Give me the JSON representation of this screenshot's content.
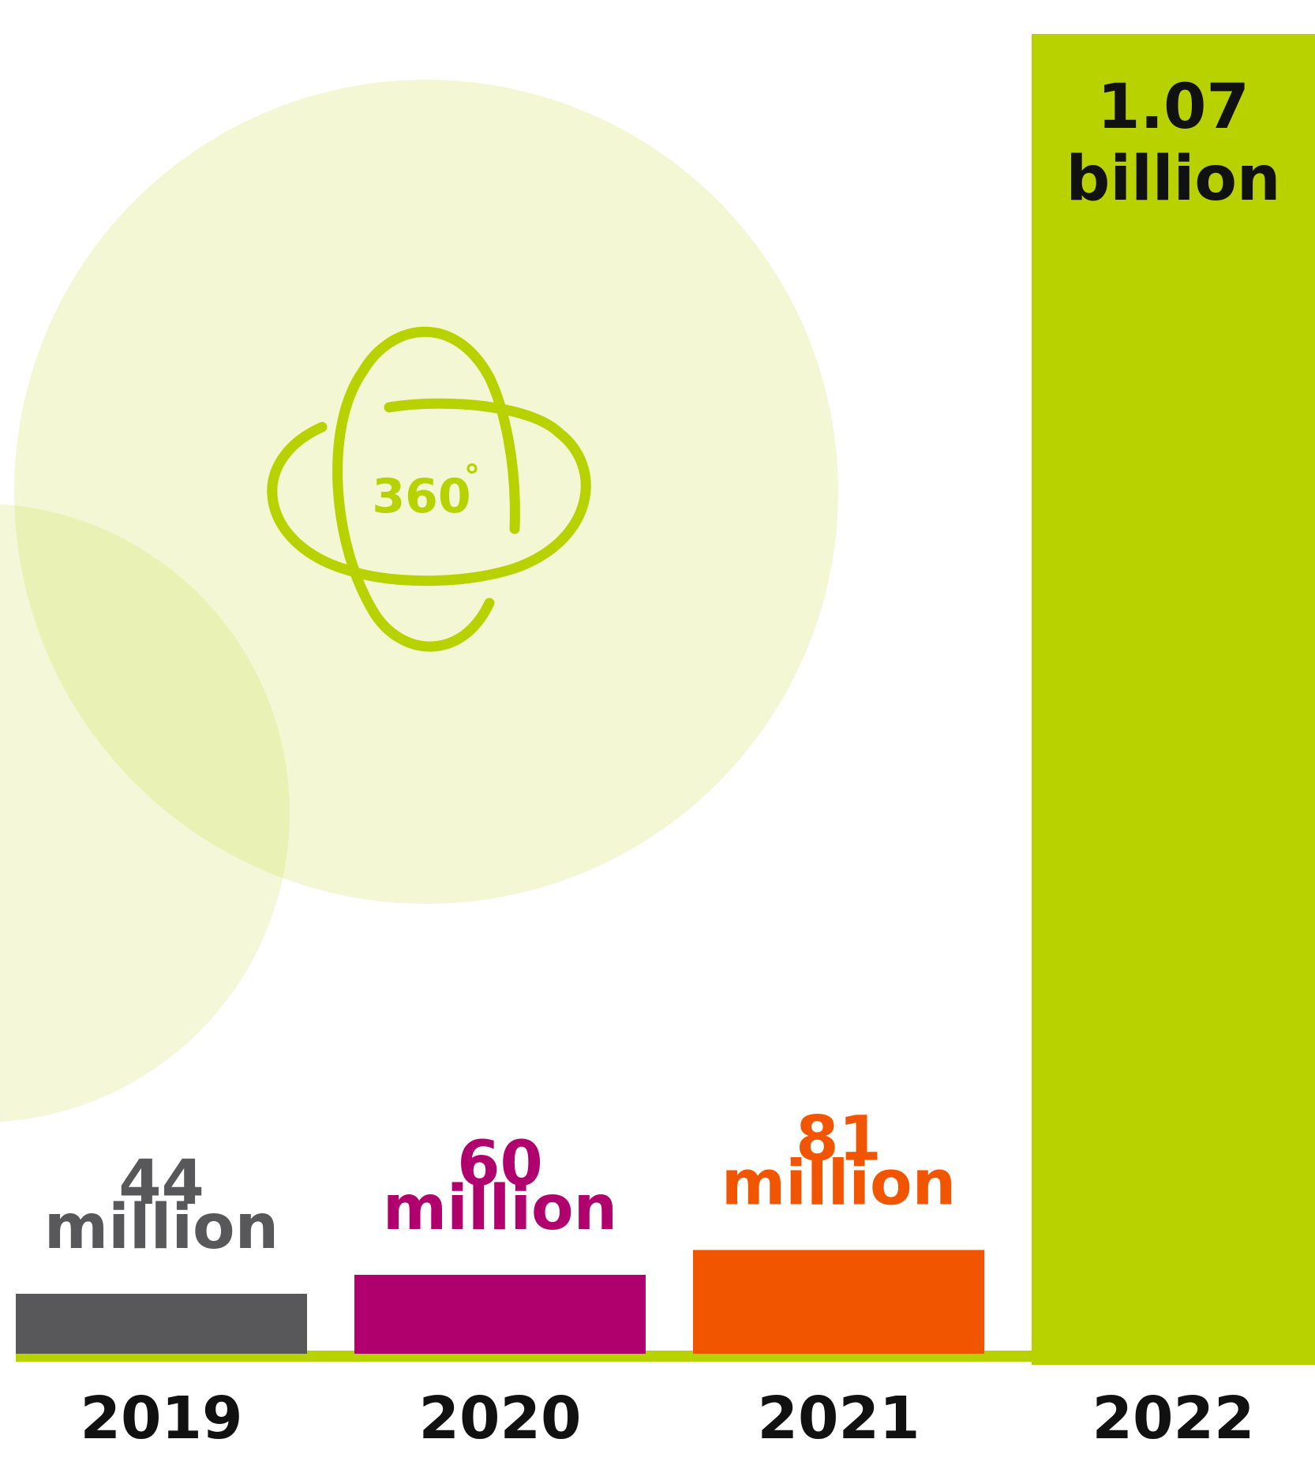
{
  "chart_data": {
    "type": "bar",
    "title": "",
    "xlabel": "",
    "ylabel": "",
    "categories": [
      "2019",
      "2020",
      "2021",
      "2022"
    ],
    "values": [
      44000000,
      60000000,
      81000000,
      1070000000
    ],
    "value_labels": [
      {
        "number": "44",
        "unit": "million"
      },
      {
        "number": "60",
        "unit": "million"
      },
      {
        "number": "81",
        "unit": "million"
      },
      {
        "number": "1.07",
        "unit": "billion"
      }
    ],
    "bar_colors": [
      "#58585a",
      "#b0006e",
      "#f25500",
      "#b8d200"
    ],
    "label_colors": [
      "#58585a",
      "#b0006e",
      "#f25500",
      "#111111"
    ],
    "baseline_color": "#b8d200",
    "legend": "none",
    "grid": false
  },
  "decoration": {
    "icon": "360-rotation-icon",
    "icon_text": "360",
    "icon_degree": "°",
    "icon_color": "#b8d200",
    "circle_color": "#eef5cc"
  }
}
